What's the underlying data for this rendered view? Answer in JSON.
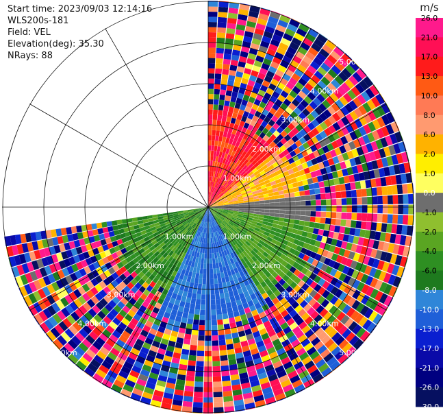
{
  "header": {
    "start_time": "Start time: 2023/09/03 12:14:16",
    "site": "WLS200s-181",
    "field": "Field: VEL",
    "elevation": "Elevation(deg): 35.30",
    "nrays": "NRays: 88"
  },
  "colorbar": {
    "unit": "m/s",
    "ticks": [
      "26.0",
      "21.0",
      "17.0",
      "13.0",
      "10.0",
      "8.0",
      "6.0",
      "2.0",
      "1.0",
      "0.0",
      "-1.0",
      "-2.0",
      "-4.0",
      "-6.0",
      "-8.0",
      "-10.0",
      "-13.0",
      "-17.0",
      "-21.0",
      "-26.0",
      "-30.0"
    ],
    "colors": [
      "#ff1a8c",
      "#ff0f55",
      "#ff1b1b",
      "#ff5a14",
      "#ff7a55",
      "#ff9a70",
      "#ffb200",
      "#ffee00",
      "#ffff60",
      "#6e6e6e",
      "#8fbf2f",
      "#5aa522",
      "#2e8f22",
      "#1e7a1e",
      "#2f86d8",
      "#1f5fd8",
      "#0a1fd0",
      "#0a0aa8",
      "#000080",
      "#061060"
    ]
  },
  "chart_data": {
    "type": "ppi",
    "field": "VEL",
    "unit": "m/s",
    "elevation_deg": 35.3,
    "n_rays": 88,
    "azimuth_coverage_deg": [
      0,
      262
    ],
    "range_rings_km": [
      1.0,
      2.0,
      3.0,
      4.0,
      5.0
    ],
    "ring_labels": [
      "1.00km",
      "2.00km",
      "3.00km",
      "4.00km",
      "5.00km"
    ],
    "color_range": [
      -30.0,
      26.0
    ],
    "sectors": [
      {
        "azimuth_from": 0,
        "azimuth_to": 50,
        "range_km": [
          0,
          2.2
        ],
        "velocity_range": [
          10.0,
          21.0
        ]
      },
      {
        "azimuth_from": 50,
        "azimuth_to": 82,
        "range_km": [
          0,
          2.3
        ],
        "velocity_range": [
          1.0,
          8.0
        ]
      },
      {
        "azimuth_from": 82,
        "azimuth_to": 98,
        "range_km": [
          0,
          2.5
        ],
        "velocity_range": [
          -1.0,
          0.0
        ]
      },
      {
        "azimuth_from": 98,
        "azimuth_to": 150,
        "range_km": [
          0,
          2.6
        ],
        "velocity_range": [
          -6.0,
          -2.0
        ]
      },
      {
        "azimuth_from": 150,
        "azimuth_to": 205,
        "range_km": [
          0,
          2.8
        ],
        "velocity_range": [
          -13.0,
          -8.0
        ]
      },
      {
        "azimuth_from": 205,
        "azimuth_to": 262,
        "range_km": [
          0,
          2.4
        ],
        "velocity_range": [
          -8.0,
          -2.0
        ]
      }
    ],
    "noise_beyond_signal": true
  }
}
